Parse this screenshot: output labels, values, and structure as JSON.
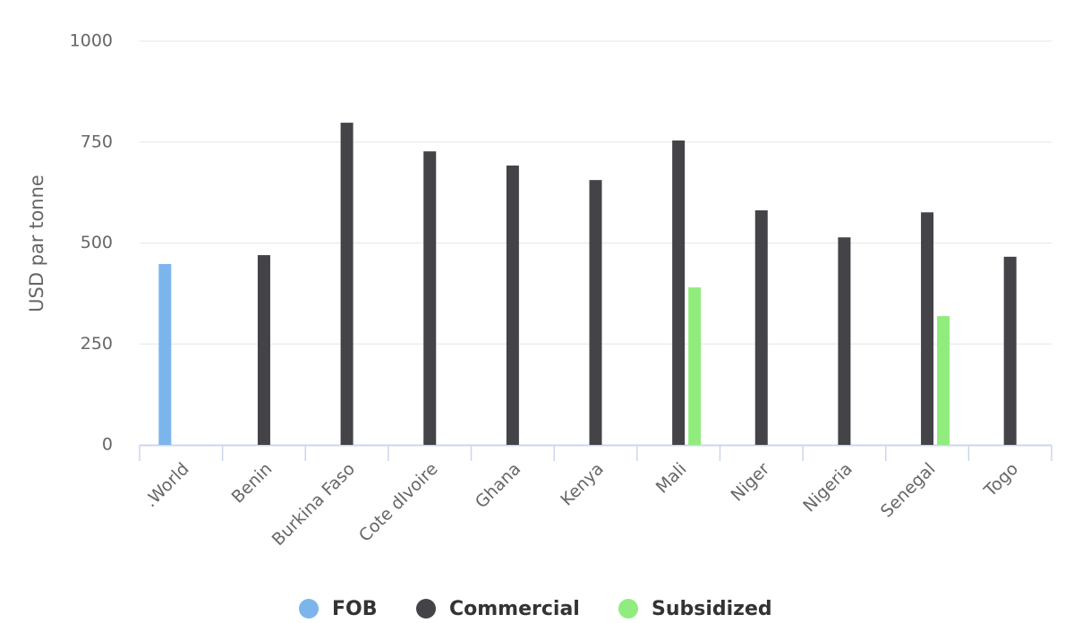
{
  "chart_data": {
    "type": "bar",
    "y_label": "USD par tonne",
    "categories": [
      ".World",
      "Benin",
      "Burkina Faso",
      "Cote dIvoire",
      "Ghana",
      "Kenya",
      "Mali",
      "Niger",
      "Nigeria",
      "Senegal",
      "Togo"
    ],
    "series": [
      {
        "name": "FOB",
        "color": "#7cb5ec",
        "values": [
          448,
          null,
          null,
          null,
          null,
          null,
          null,
          null,
          null,
          null,
          null
        ]
      },
      {
        "name": "Commercial",
        "color": "#434348",
        "values": [
          null,
          470,
          798,
          727,
          692,
          656,
          754,
          581,
          514,
          576,
          466
        ]
      },
      {
        "name": "Subsidized",
        "color": "#90ed7d",
        "values": [
          null,
          null,
          null,
          null,
          null,
          null,
          390,
          null,
          null,
          319,
          null
        ]
      }
    ],
    "ylim": [
      0,
      1000
    ],
    "yticks": [
      0,
      250,
      500,
      750,
      1000
    ],
    "grid": true,
    "legend": "bottom"
  }
}
